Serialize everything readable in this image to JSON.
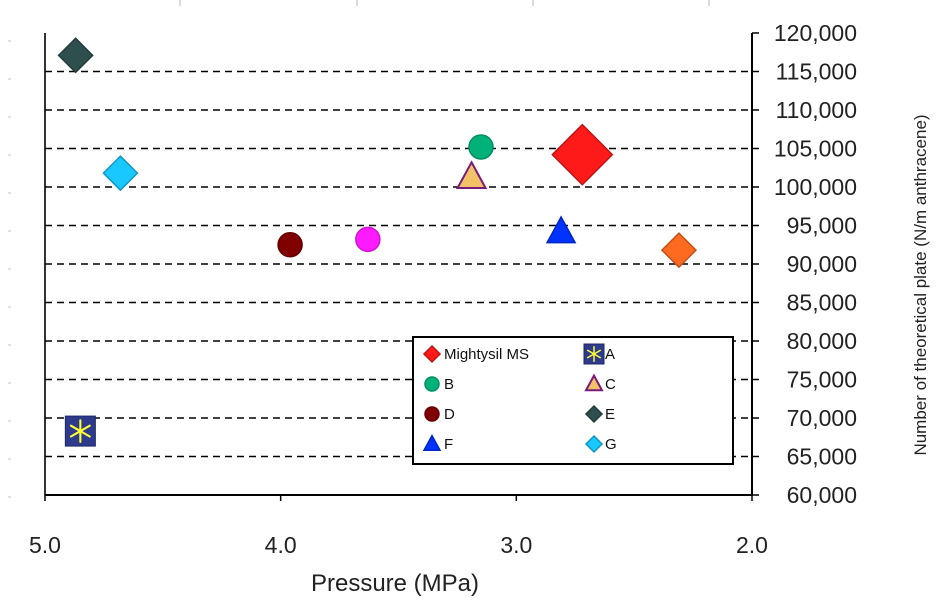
{
  "chart_data": {
    "type": "scatter",
    "title": "",
    "xlabel": "Pressure (MPa)",
    "ylabel": "Number of theoretical plate (N/m anthracene)",
    "xlim": [
      5.0,
      2.0
    ],
    "x_reversed": true,
    "ylim": [
      60000,
      120000
    ],
    "x_ticks": [
      "5.0",
      "4.0",
      "3.0",
      "2.0"
    ],
    "x_tick_values": [
      5.0,
      4.0,
      3.0,
      2.0
    ],
    "y_ticks": [
      "60,000",
      "65,000",
      "70,000",
      "75,000",
      "80,000",
      "85,000",
      "90,000",
      "95,000",
      "100,000",
      "105,000",
      "110,000",
      "115,000",
      "120,000"
    ],
    "y_tick_values": [
      60000,
      65000,
      70000,
      75000,
      80000,
      85000,
      90000,
      95000,
      100000,
      105000,
      110000,
      115000,
      120000
    ],
    "y_axis_side": "right",
    "grid": "horizontal-dashed",
    "legend_position": "bottom-right",
    "series": [
      {
        "name": "Mightysil MS",
        "marker": "diamond-large",
        "color": "#ff1a1a",
        "points": [
          [
            2.72,
            104200
          ]
        ]
      },
      {
        "name": "A",
        "marker": "asterisk-box",
        "color": "#2e3a8c",
        "points": [
          [
            4.85,
            68300
          ]
        ]
      },
      {
        "name": "B",
        "marker": "circle",
        "color": "#00b27a",
        "points": [
          [
            3.15,
            105200
          ]
        ]
      },
      {
        "name": "C",
        "marker": "triangle",
        "color": "#f2c266",
        "edge": "#7a1a7a",
        "points": [
          [
            3.19,
            101300
          ]
        ]
      },
      {
        "name": "D",
        "marker": "circle",
        "color": "#800000",
        "points": [
          [
            3.96,
            92500
          ]
        ]
      },
      {
        "name": "E",
        "marker": "diamond",
        "color": "#2f4f4f",
        "points": [
          [
            4.87,
            117100
          ]
        ]
      },
      {
        "name": "F",
        "marker": "triangle",
        "color": "#0033ff",
        "points": [
          [
            2.81,
            94200
          ]
        ]
      },
      {
        "name": "G",
        "marker": "diamond",
        "color": "#19c8ff",
        "points": [
          [
            4.68,
            101800
          ]
        ]
      },
      {
        "name": "",
        "marker": "circle",
        "color": "#ff1aff",
        "points": [
          [
            3.63,
            93200
          ]
        ],
        "in_legend": false
      },
      {
        "name": "",
        "marker": "diamond",
        "color": "#ff6a21",
        "points": [
          [
            2.31,
            91800
          ]
        ],
        "in_legend": false
      }
    ],
    "legend": [
      [
        "Mightysil MS",
        "A"
      ],
      [
        "B",
        "C"
      ],
      [
        "D",
        "E"
      ],
      [
        "F",
        "G"
      ]
    ]
  }
}
